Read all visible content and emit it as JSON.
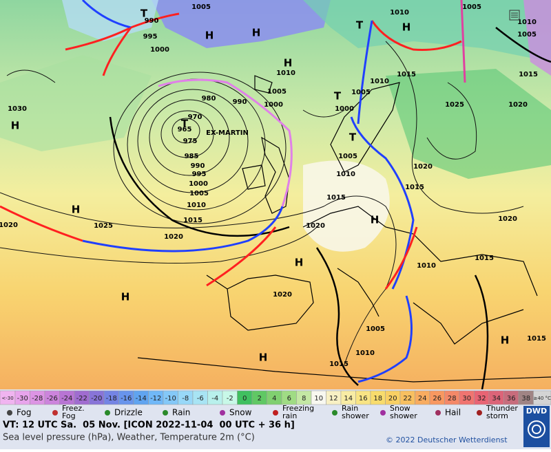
{
  "map": {
    "labels": [
      "990",
      "995",
      "1000",
      "1005",
      "T",
      "H",
      "H",
      "1010",
      "1005",
      "1000",
      "980",
      "990",
      "970",
      "T",
      "965",
      "EX-MARTIN",
      "975",
      "985",
      "990",
      "995",
      "1000",
      "1005",
      "1010",
      "1015",
      "1020",
      "1025",
      "1030",
      "H",
      "H",
      "1020",
      "H",
      "H",
      "1020",
      "1015",
      "1010",
      "1005",
      "T",
      "1000",
      "T",
      "1005",
      "1010",
      "1015",
      "T",
      "H",
      "1010",
      "1005",
      "1010",
      "1005",
      "1015",
      "1025",
      "1020",
      "1015",
      "1020",
      "1020",
      "1015",
      "1010",
      "H",
      "H",
      "1005",
      "1010",
      "1015",
      "1015",
      "H",
      "H",
      "1020"
    ]
  },
  "temperature_scale": {
    "labels": [
      "<-30",
      "-30",
      "-28",
      "-26",
      "-24",
      "-22",
      "-20",
      "-18",
      "-16",
      "-14",
      "-12",
      "-10",
      "-8",
      "-6",
      "-4",
      "-2",
      "0",
      "2",
      "4",
      "6",
      "8",
      "10",
      "12",
      "14",
      "16",
      "18",
      "20",
      "22",
      "24",
      "26",
      "28",
      "30",
      "32",
      "34",
      "36",
      "38",
      "≥40 °C"
    ],
    "colors": [
      "#f0b4f0",
      "#e8a4ec",
      "#dc94e4",
      "#cc84dc",
      "#b874d4",
      "#a06cd0",
      "#8874d8",
      "#7484e4",
      "#6894ec",
      "#60a4f0",
      "#70b8f8",
      "#84c8f8",
      "#98d8f8",
      "#a8e4f4",
      "#b8f0ec",
      "#c8f8e8",
      "#40c060",
      "#60c864",
      "#80d070",
      "#a0dc84",
      "#c4e8a4",
      "#f8f8f0",
      "#f8f0c4",
      "#f8eca4",
      "#f8e484",
      "#f8dc6c",
      "#f8d064",
      "#f8c060",
      "#f8ac60",
      "#f89860",
      "#f48868",
      "#f07470",
      "#e86474",
      "#dc6478",
      "#c86c7c",
      "#a08484",
      "#d4d4d4"
    ]
  },
  "legend": {
    "items": [
      [
        "Fog"
      ],
      [
        "Freez.",
        "Fog"
      ],
      [
        "Drizzle"
      ],
      [
        "Rain"
      ],
      [
        "Snow"
      ],
      [
        "Freezing",
        "rain"
      ],
      [
        "Rain",
        "shower"
      ],
      [
        "Snow",
        "shower"
      ],
      [
        "Hail"
      ],
      [
        "Thunder",
        "storm"
      ]
    ]
  },
  "footer": {
    "valid_time": "VT: 12 UTC Sa.  05 Nov. [ICON 2022-11-04  00 UTC + 36 h]",
    "description": "Sea level pressure (hPa), Weather, Temperature 2m (°C)",
    "copyright": "© 2022 Deutscher Wetterdienst",
    "logo": "DWD"
  }
}
